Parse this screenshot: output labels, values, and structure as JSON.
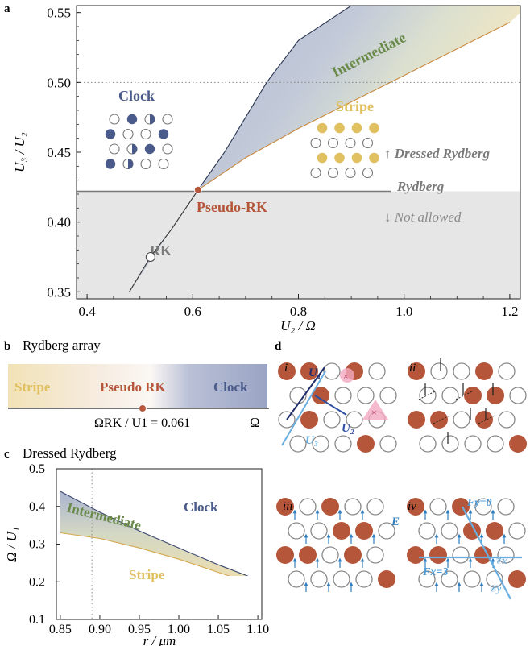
{
  "panel_a": {
    "label": "a",
    "xlabel": "U₂ / Ω",
    "ylabel": "U₃ / U₂",
    "xticks": [
      "0.4",
      "0.6",
      "0.8",
      "1.0",
      "1.2"
    ],
    "yticks": [
      "0.35",
      "0.40",
      "0.45",
      "0.50",
      "0.55"
    ],
    "phases": {
      "clock": "Clock",
      "stripe": "Stripe",
      "intermediate": "Intermediate",
      "pseudo_rk": "Pseudo-RK",
      "rk": "RK"
    },
    "annotations": {
      "dressed": "↑ Dressed Rydberg",
      "rydberg": "Rydberg",
      "not_allowed": "↓ Not allowed"
    }
  },
  "panel_b": {
    "label": "b",
    "title": "Rydberg array",
    "phases": [
      "Stripe",
      "Pseudo RK",
      "Clock"
    ],
    "critical": "ΩRK / U1 = 0.061",
    "axis": "Ω"
  },
  "panel_c": {
    "label": "c",
    "title": "Dressed Rydberg",
    "xlabel": "r / μm",
    "ylabel": "Ω / U₁",
    "xticks": [
      "0.85",
      "0.90",
      "0.95",
      "1.00",
      "1.05",
      "1.10"
    ],
    "yticks": [
      "0.1",
      "0.2",
      "0.3",
      "0.4",
      "0.5"
    ],
    "phases": {
      "clock": "Clock",
      "intermediate": "Intermediate",
      "stripe": "Stripe"
    }
  },
  "panel_d": {
    "label": "d",
    "sublabels": [
      "i",
      "ii",
      "iii",
      "iv"
    ],
    "bonds": [
      "U₁",
      "U₂",
      "U₃"
    ],
    "field": "E",
    "sectors": [
      "Fy=0",
      "Fx=3"
    ],
    "lines": [
      "𝒞x",
      "𝒞y"
    ]
  },
  "colors": {
    "clock": "#4a5a8a",
    "stripe": "#e0c060",
    "intermediate": "#6a8a4a",
    "pseudo_rk": "#b5563a",
    "atom": "#b5563a",
    "gray": "#7f7f7f",
    "field": "#2f7fc0"
  },
  "chart_data": [
    {
      "type": "area",
      "title": "",
      "xlabel": "U2 / Ω",
      "ylabel": "U3 / U2",
      "xlim": [
        0.38,
        1.22
      ],
      "ylim": [
        0.345,
        0.555
      ],
      "series": [
        {
          "name": "Clock",
          "x": [
            0.48,
            0.52,
            0.56,
            0.61,
            0.66,
            0.7,
            0.74,
            0.8,
            0.9
          ],
          "values": [
            0.35,
            0.375,
            0.395,
            0.423,
            0.45,
            0.475,
            0.5,
            0.53,
            0.555
          ]
        },
        {
          "name": "Stripe",
          "x": [
            0.61,
            0.7,
            0.8,
            0.9,
            1.0,
            1.1,
            1.2
          ],
          "values": [
            0.423,
            0.446,
            0.467,
            0.486,
            0.505,
            0.524,
            0.543
          ]
        }
      ],
      "reference_lines": {
        "rydberg_y": 0.422,
        "dotted_y": 0.5
      },
      "points": {
        "RK": [
          0.52,
          0.375
        ],
        "Pseudo-RK": [
          0.61,
          0.423
        ]
      }
    },
    {
      "type": "area",
      "title": "",
      "xlabel": "r / μm",
      "ylabel": "Ω / U1",
      "xlim": [
        0.845,
        1.105
      ],
      "ylim": [
        0.1,
        0.5
      ],
      "series": [
        {
          "name": "Clock",
          "x": [
            0.85,
            0.9,
            0.95,
            1.0,
            1.05,
            1.1
          ],
          "values": [
            0.44,
            0.385,
            0.335,
            0.29,
            0.245,
            0.205
          ]
        },
        {
          "name": "Stripe",
          "x": [
            0.85,
            0.9,
            0.95,
            1.0,
            1.05,
            1.1
          ],
          "values": [
            0.33,
            0.315,
            0.29,
            0.26,
            0.225,
            0.19
          ]
        }
      ],
      "reference_lines": {
        "dotted_x": 0.89
      }
    }
  ]
}
